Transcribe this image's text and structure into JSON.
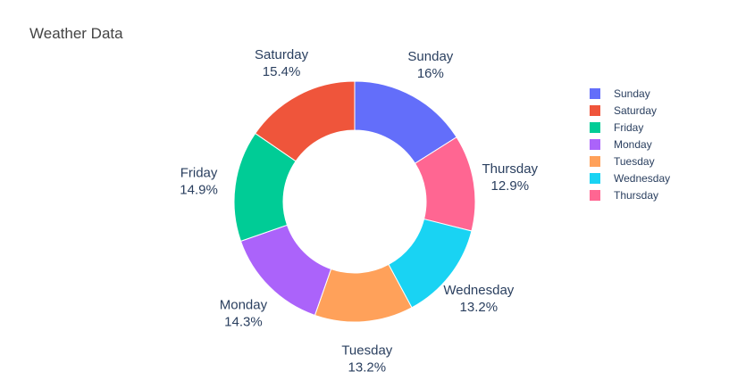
{
  "chart_data": {
    "type": "pie",
    "title": "Weather Data",
    "hole": true,
    "direction": "clockwise",
    "legend_position": "right",
    "slices": [
      {
        "label": "Sunday",
        "value": 16.0,
        "percent_label": "16%",
        "color": "#636efa"
      },
      {
        "label": "Thursday",
        "value": 12.9,
        "percent_label": "12.9%",
        "color": "#ff6692"
      },
      {
        "label": "Wednesday",
        "value": 13.2,
        "percent_label": "13.2%",
        "color": "#19d3f3"
      },
      {
        "label": "Tuesday",
        "value": 13.2,
        "percent_label": "13.2%",
        "color": "#ffa15a"
      },
      {
        "label": "Monday",
        "value": 14.3,
        "percent_label": "14.3%",
        "color": "#ab63fa"
      },
      {
        "label": "Friday",
        "value": 14.9,
        "percent_label": "14.9%",
        "color": "#00cc96"
      },
      {
        "label": "Saturday",
        "value": 15.4,
        "percent_label": "15.4%",
        "color": "#ef553b"
      }
    ],
    "legend": [
      {
        "label": "Sunday",
        "color": "#636efa"
      },
      {
        "label": "Saturday",
        "color": "#ef553b"
      },
      {
        "label": "Friday",
        "color": "#00cc96"
      },
      {
        "label": "Monday",
        "color": "#ab63fa"
      },
      {
        "label": "Tuesday",
        "color": "#ffa15a"
      },
      {
        "label": "Wednesday",
        "color": "#19d3f3"
      },
      {
        "label": "Thursday",
        "color": "#ff6692"
      }
    ]
  }
}
